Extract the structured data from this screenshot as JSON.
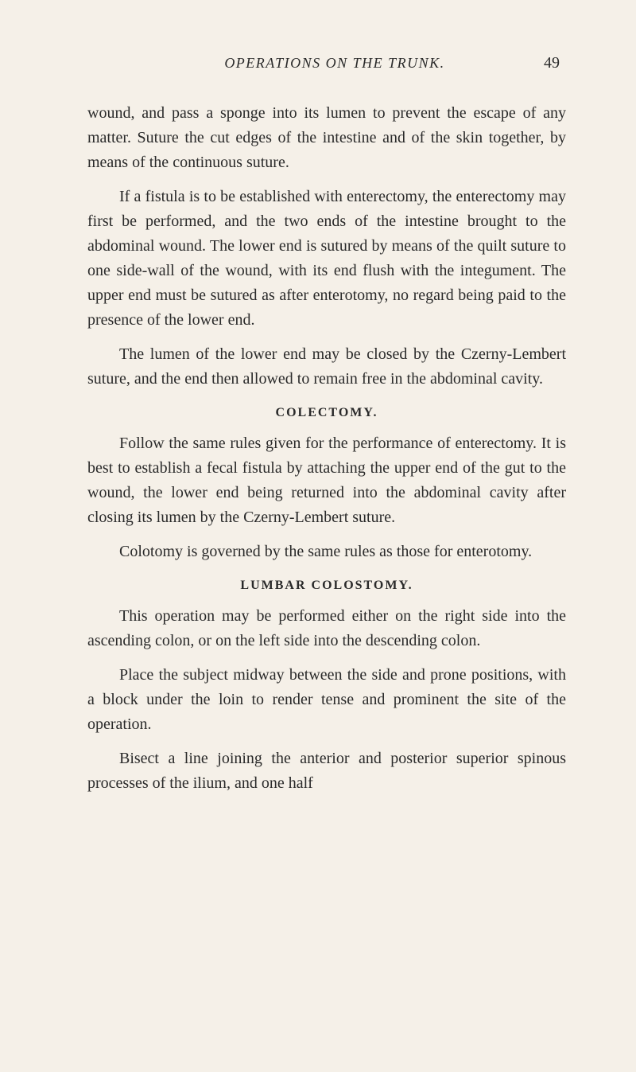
{
  "page": {
    "running_title": "OPERATIONS ON THE TRUNK.",
    "page_number": "49",
    "background_color": "#f5f0e8",
    "text_color": "#2a2a2a",
    "font_family": "Georgia, Times New Roman, serif",
    "body_fontsize": 20,
    "heading_fontsize": 16,
    "line_height": 1.55
  },
  "paragraphs": {
    "p1": "wound, and pass a sponge into its lumen to prevent the escape of any matter. Suture the cut edges of the intestine and of the skin together, by means of the continuous suture.",
    "p2": "If a fistula is to be established with enterectomy, the enterectomy may first be performed, and the two ends of the intestine brought to the abdominal wound. The lower end is sutured by means of the quilt suture to one side-wall of the wound, with its end flush with the integument. The upper end must be sutured as after enterotomy, no regard being paid to the presence of the lower end.",
    "p3": "The lumen of the lower end may be closed by the Czerny-Lembert suture, and the end then allowed to remain free in the abdominal cavity.",
    "h1": "COLECTOMY.",
    "p4": "Follow the same rules given for the performance of enterectomy. It is best to establish a fecal fistula by attaching the upper end of the gut to the wound, the lower end being returned into the abdominal cavity after closing its lumen by the Czerny-Lembert suture.",
    "p5": "Colotomy is governed by the same rules as those for enterotomy.",
    "h2": "LUMBAR COLOSTOMY.",
    "p6": "This operation may be performed either on the right side into the ascending colon, or on the left side into the descending colon.",
    "p7": "Place the subject midway between the side and prone positions, with a block under the loin to render tense and prominent the site of the operation.",
    "p8": "Bisect a line joining the anterior and posterior superior spinous processes of the ilium, and one half"
  }
}
